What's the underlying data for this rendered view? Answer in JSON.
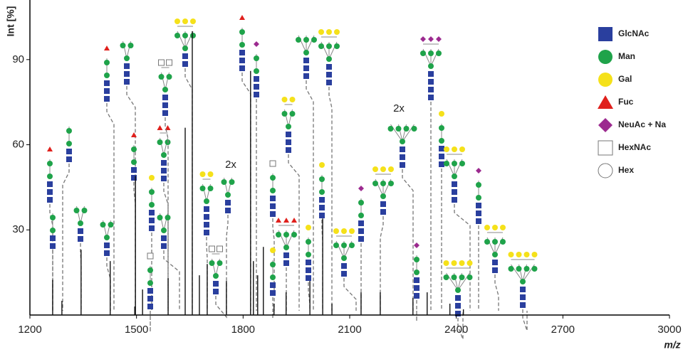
{
  "chart_data": {
    "type": "spectrum",
    "x_label": "m/z",
    "y_label": "Int [%]",
    "xlim": [
      1200,
      3000
    ],
    "ylim": [
      0,
      111
    ],
    "xticks": [
      1200,
      1500,
      1800,
      2100,
      2400,
      2700,
      3000
    ],
    "yticks": [
      30,
      60,
      90
    ],
    "color": "#111111",
    "x": [
      1264,
      1290,
      1344,
      1426,
      1495,
      1497,
      1517,
      1589,
      1637,
      1657,
      1677,
      1699,
      1753,
      1821,
      1829,
      1841,
      1857,
      1887,
      1921,
      1988,
      2024,
      2050,
      2132,
      2186,
      2278,
      2318,
      2382,
      2420
    ],
    "values": [
      12.4,
      5,
      23,
      19,
      3,
      49,
      9,
      13,
      66,
      100,
      14,
      18,
      12,
      86,
      19,
      14,
      24,
      4,
      8,
      12,
      34,
      4,
      8,
      8,
      6,
      8,
      4,
      2
    ],
    "annotations": [
      "2x",
      "2x"
    ],
    "legend": [
      {
        "label": "GlcNAc",
        "color": "#2a3f9e",
        "shape": "square"
      },
      {
        "label": "Man",
        "color": "#1fa34a",
        "shape": "circle"
      },
      {
        "label": "Gal",
        "color": "#f5e11a",
        "shape": "circle"
      },
      {
        "label": "Fuc",
        "color": "#e0201c",
        "shape": "triangle"
      },
      {
        "label": "NeuAc + Na",
        "color": "#9c2a8f",
        "shape": "diamond"
      },
      {
        "label": "HexNAc",
        "color": "#ffffff",
        "shape": "square"
      },
      {
        "label": "Hex",
        "color": "#ffffff",
        "shape": "circle"
      }
    ]
  }
}
